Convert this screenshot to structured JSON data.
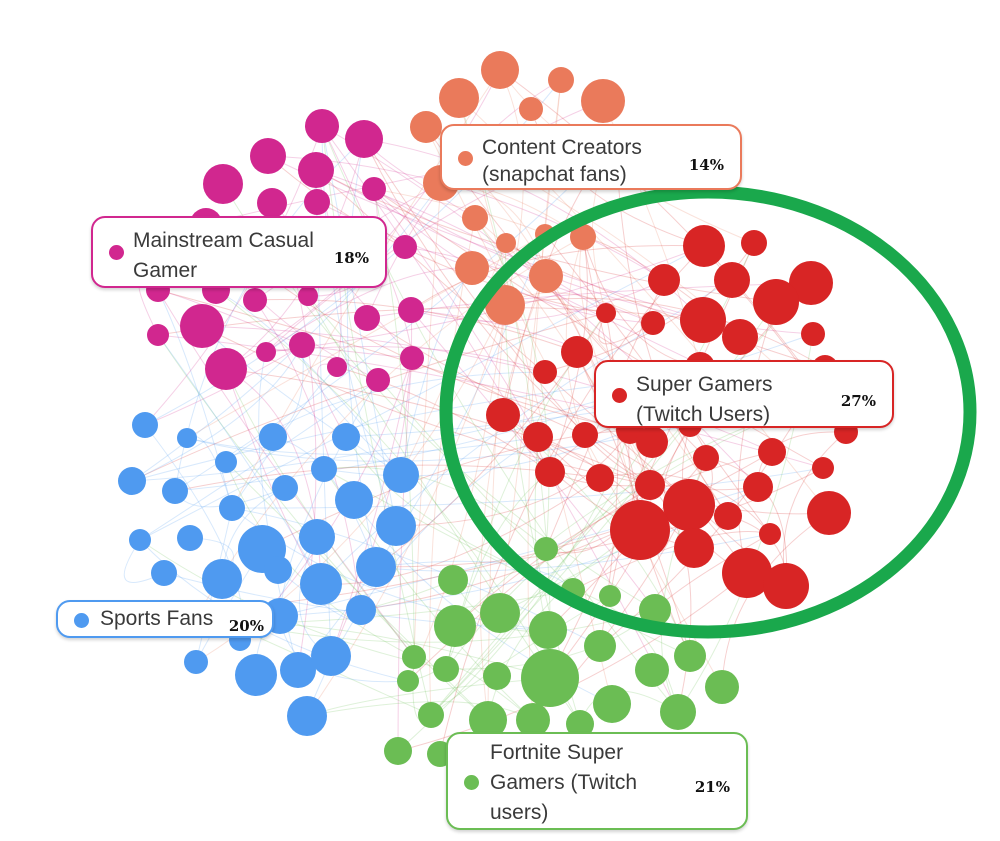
{
  "colors": {
    "mainstream": "#d1278f",
    "creators": "#ea7a5b",
    "super": "#d82525",
    "sports": "#4f9af0",
    "fortnite": "#6bbd54",
    "highlight_ring": "#1aa84c"
  },
  "segments": [
    {
      "key": "mainstream",
      "lines": [
        "Mainstream Casual",
        "Gamer"
      ],
      "percent": "18%"
    },
    {
      "key": "creators",
      "lines": [
        "Content Creators",
        "(snapchat fans)"
      ],
      "percent": "14%"
    },
    {
      "key": "super",
      "lines": [
        "Super Gamers",
        "(Twitch Users)"
      ],
      "percent": "27%"
    },
    {
      "key": "sports",
      "lines": [
        "Sports Fans"
      ],
      "percent": "20%"
    },
    {
      "key": "fortnite",
      "lines": [
        "Fortnite Super",
        "Gamers (Twitch",
        "users)"
      ],
      "percent": "21%"
    }
  ],
  "highlight": {
    "segment": "super"
  }
}
